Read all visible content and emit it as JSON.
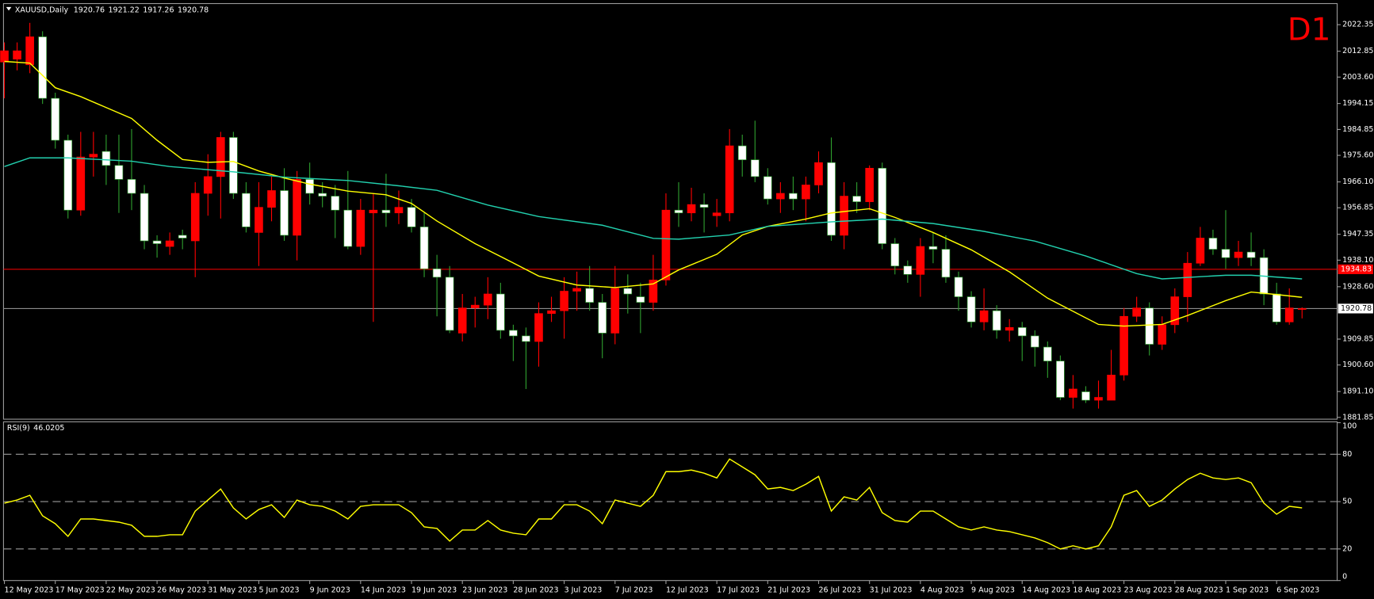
{
  "chart_data": [
    {
      "type": "candlestick",
      "title": "XAUUSD,Daily",
      "annotation": "D1",
      "categories": [
        "12 May 2023",
        null,
        null,
        null,
        "17 May 2023",
        null,
        null,
        null,
        "22 May 2023",
        null,
        null,
        null,
        "26 May 2023",
        null,
        null,
        null,
        "31 May 2023",
        null,
        null,
        null,
        "5 Jun 2023",
        null,
        null,
        null,
        "9 Jun 2023",
        null,
        null,
        null,
        "14 Jun 2023",
        null,
        null,
        null,
        "19 Jun 2023",
        null,
        null,
        null,
        "23 Jun 2023",
        null,
        null,
        null,
        "28 Jun 2023",
        null,
        null,
        null,
        "3 Jul 2023",
        null,
        null,
        null,
        "7 Jul 2023",
        null,
        null,
        null,
        "12 Jul 2023",
        null,
        null,
        null,
        "17 Jul 2023",
        null,
        null,
        null,
        "21 Jul 2023",
        null,
        null,
        null,
        "26 Jul 2023",
        null,
        null,
        null,
        "31 Jul 2023",
        null,
        null,
        null,
        "4 Aug 2023",
        null,
        null,
        null,
        "9 Aug 2023",
        null,
        null,
        null,
        "14 Aug 2023",
        null,
        null,
        null,
        "18 Aug 2023",
        null,
        null,
        null,
        "23 Aug 2023",
        null,
        null,
        null,
        "28 Aug 2023",
        null,
        null,
        null,
        "1 Sep 2023",
        null,
        null,
        null,
        "6 Sep 2023",
        null,
        null
      ],
      "open": [
        2009,
        2010,
        2008,
        2018,
        1996,
        1981,
        1956,
        1975,
        1977,
        1972,
        1967,
        1962,
        1945,
        1943,
        1947,
        1945,
        1962,
        1968,
        1982,
        1962,
        1948,
        1957,
        1963,
        1947,
        1967,
        1962,
        1961,
        1956,
        1943,
        1955,
        1956,
        1955,
        1957,
        1950,
        1935,
        1932,
        1912,
        1921,
        1922,
        1926,
        1913,
        1911,
        1909,
        1919,
        1920,
        1927,
        1928,
        1923,
        1912,
        1928,
        1925,
        1923,
        1931,
        1956,
        1955,
        1958,
        1954,
        1955,
        1979,
        1974,
        1968,
        1960,
        1962,
        1960,
        1965,
        1973,
        1947,
        1961,
        1959,
        1971,
        1944,
        1936,
        1933,
        1943,
        1942,
        1932,
        1925,
        1916,
        1920,
        1913,
        1914,
        1911,
        1907,
        1902,
        1889,
        1891,
        1888,
        1888,
        1897,
        1918,
        1921,
        1908,
        1915,
        1925,
        1937,
        1946,
        1942,
        1939,
        1941,
        1939,
        1926,
        1916,
        1920.76
      ],
      "high": [
        2016,
        2016,
        2023,
        2020,
        1998,
        1983,
        1984,
        1984,
        1983,
        1983,
        1985,
        1965,
        1947,
        1948,
        1949,
        1966,
        1976,
        1984,
        1984,
        1966,
        1966,
        1968,
        1971,
        1970,
        1973,
        1966,
        1965,
        1970,
        1960,
        1962,
        1969,
        1963,
        1960,
        1955,
        1940,
        1936,
        1926,
        1925,
        1932,
        1930,
        1915,
        1914,
        1923,
        1925,
        1932,
        1934,
        1936,
        1926,
        1936,
        1933,
        1930,
        1940,
        1962,
        1966,
        1964,
        1962,
        1960,
        1985,
        1983,
        1988,
        1971,
        1966,
        1968,
        1968,
        1977,
        1982,
        1966,
        1966,
        1972,
        1973,
        1946,
        1938,
        1946,
        1948,
        1947,
        1934,
        1927,
        1928,
        1922,
        1917,
        1916,
        1913,
        1909,
        1904,
        1897,
        1893,
        1895,
        1906,
        1921,
        1925,
        1923,
        1918,
        1928,
        1941,
        1950,
        1949,
        1956,
        1945,
        1948,
        1942,
        1930,
        1928,
        1921.22
      ],
      "low": [
        1996,
        2006,
        2005,
        1994,
        1978,
        1953,
        1954,
        1968,
        1965,
        1955,
        1956,
        1942,
        1939,
        1940,
        1942,
        1932,
        1954,
        1953,
        1960,
        1948,
        1936,
        1952,
        1945,
        1938,
        1958,
        1957,
        1946,
        1942,
        1940,
        1916,
        1950,
        1951,
        1948,
        1932,
        1918,
        1912,
        1909,
        1914,
        1917,
        1910,
        1902,
        1892,
        1900,
        1916,
        1910,
        1920,
        1920,
        1903,
        1908,
        1919,
        1912,
        1920,
        1929,
        1950,
        1952,
        1948,
        1950,
        1952,
        1968,
        1966,
        1958,
        1955,
        1956,
        1952,
        1962,
        1945,
        1942,
        1955,
        1956,
        1942,
        1933,
        1930,
        1925,
        1937,
        1930,
        1920,
        1914,
        1913,
        1910,
        1909,
        1902,
        1900,
        1896,
        1888,
        1885,
        1887,
        1885,
        1888,
        1895,
        1916,
        1904,
        1906,
        1912,
        1916,
        1936,
        1940,
        1935,
        1936,
        1936,
        1922,
        1915,
        1915,
        1917.26
      ],
      "close": [
        2013,
        2013,
        2018,
        1996,
        1981,
        1956,
        1975,
        1976,
        1972,
        1967,
        1962,
        1945,
        1944,
        1945,
        1946,
        1962,
        1968,
        1982,
        1962,
        1950,
        1957,
        1963,
        1947,
        1967,
        1962,
        1961,
        1956,
        1943,
        1956,
        1956,
        1955,
        1957,
        1950,
        1935,
        1932,
        1913,
        1921,
        1922,
        1926,
        1913,
        1911,
        1909,
        1919,
        1920,
        1927,
        1928,
        1923,
        1912,
        1928,
        1926,
        1923,
        1931,
        1956,
        1955,
        1958,
        1957,
        1955,
        1979,
        1974,
        1968,
        1960,
        1962,
        1960,
        1965,
        1973,
        1947,
        1961,
        1959,
        1971,
        1944,
        1936,
        1933,
        1943,
        1942,
        1932,
        1925,
        1916,
        1920,
        1913,
        1914,
        1911,
        1907,
        1902,
        1889,
        1892,
        1888,
        1889,
        1897,
        1918,
        1921,
        1908,
        1915,
        1925,
        1937,
        1946,
        1942,
        1939,
        1941,
        1939,
        1926,
        1916,
        1921,
        1920.78
      ],
      "up_color": "#ff0000",
      "down_color": "#ffffff",
      "up_wick_color": "#ff0000",
      "down_wick_color": "#2fa02f",
      "moving_averages": [
        {
          "color": "#ffff00",
          "x": [
            0,
            2,
            4,
            6,
            10,
            12,
            14,
            16,
            18,
            20,
            22,
            24,
            27,
            30,
            32,
            34,
            37,
            40,
            42,
            45,
            48,
            51,
            53,
            56,
            58,
            60,
            63,
            65,
            68,
            70,
            73,
            76,
            79,
            82,
            86,
            88,
            91,
            93,
            96,
            98,
            100,
            102
          ],
          "values": [
            2009.2,
            2008.6,
            1999.8,
            1996.6,
            1988.8,
            1981.0,
            1974.1,
            1973.1,
            1973.4,
            1970.0,
            1967.5,
            1965.3,
            1962.8,
            1961.5,
            1958.4,
            1952.1,
            1944.0,
            1937.1,
            1932.4,
            1929.2,
            1928.3,
            1929.6,
            1934.6,
            1940.2,
            1947.1,
            1950.2,
            1952.8,
            1955.0,
            1956.5,
            1953.4,
            1948.0,
            1941.8,
            1933.9,
            1924.5,
            1915.1,
            1914.5,
            1915.1,
            1918.3,
            1923.6,
            1926.7,
            1925.8,
            1924.8
          ]
        },
        {
          "color": "#22d0ae",
          "x": [
            0,
            2,
            5,
            10,
            13,
            18,
            22,
            27,
            31,
            34,
            38,
            42,
            47,
            51,
            53,
            57,
            60,
            65,
            69,
            73,
            77,
            81,
            85,
            89,
            91,
            96,
            98,
            102
          ],
          "values": [
            1971.6,
            1974.7,
            1974.7,
            1973.5,
            1971.6,
            1969.7,
            1967.8,
            1966.6,
            1964.7,
            1963.1,
            1957.8,
            1953.7,
            1950.6,
            1945.9,
            1945.6,
            1947.1,
            1950.2,
            1951.8,
            1952.8,
            1951.2,
            1948.4,
            1944.9,
            1939.6,
            1933.3,
            1931.4,
            1932.7,
            1932.7,
            1931.4
          ]
        }
      ],
      "level_line": 1934.83,
      "level_color": "#ff0000",
      "ylim": [
        1881.2,
        2029.9
      ],
      "yticks": [
        2022.35,
        2012.85,
        {
          "value": 2003.6,
          "label": "2003.60"
        },
        1994.15,
        1984.85,
        {
          "value": 1975.6,
          "label": "1975.60"
        },
        {
          "value": 1966.1,
          "label": "1966.10"
        },
        1956.85,
        1947.35,
        {
          "value": 1938.1,
          "label": "1938.10"
        },
        {
          "value": 1928.6,
          "label": "1928.60"
        },
        1909.85,
        {
          "value": 1900.6,
          "label": "1900.60"
        },
        {
          "value": 1891.1,
          "label": "1891.10"
        },
        1881.85
      ]
    },
    {
      "type": "line",
      "title": "RSI(9)",
      "color": "#ffff00",
      "values": [
        49,
        51,
        54,
        41,
        36,
        28,
        39,
        39,
        38,
        37,
        35,
        28,
        28,
        29,
        29,
        44,
        51,
        58,
        46,
        39,
        45,
        48,
        40,
        51,
        48,
        47,
        44,
        39,
        47,
        48,
        48,
        48,
        43,
        34,
        33,
        25,
        32,
        32,
        38,
        32,
        30,
        29,
        39,
        39,
        48,
        48,
        44,
        36,
        51,
        49,
        47,
        54,
        69,
        69,
        70,
        68,
        65,
        77,
        72,
        67,
        58,
        59,
        57,
        61,
        66,
        44,
        53,
        51,
        59,
        43,
        38,
        37,
        44,
        44,
        39,
        34,
        32,
        34,
        32,
        31,
        29,
        27,
        24,
        20,
        22,
        20,
        22,
        34,
        54,
        57,
        47,
        51,
        58,
        64,
        68,
        65,
        64,
        65,
        62,
        49,
        42,
        47,
        46.0205
      ],
      "ylim": [
        0,
        100
      ],
      "yticks": [
        100,
        80,
        50,
        20,
        0
      ],
      "grid": "dashed"
    }
  ]
}
